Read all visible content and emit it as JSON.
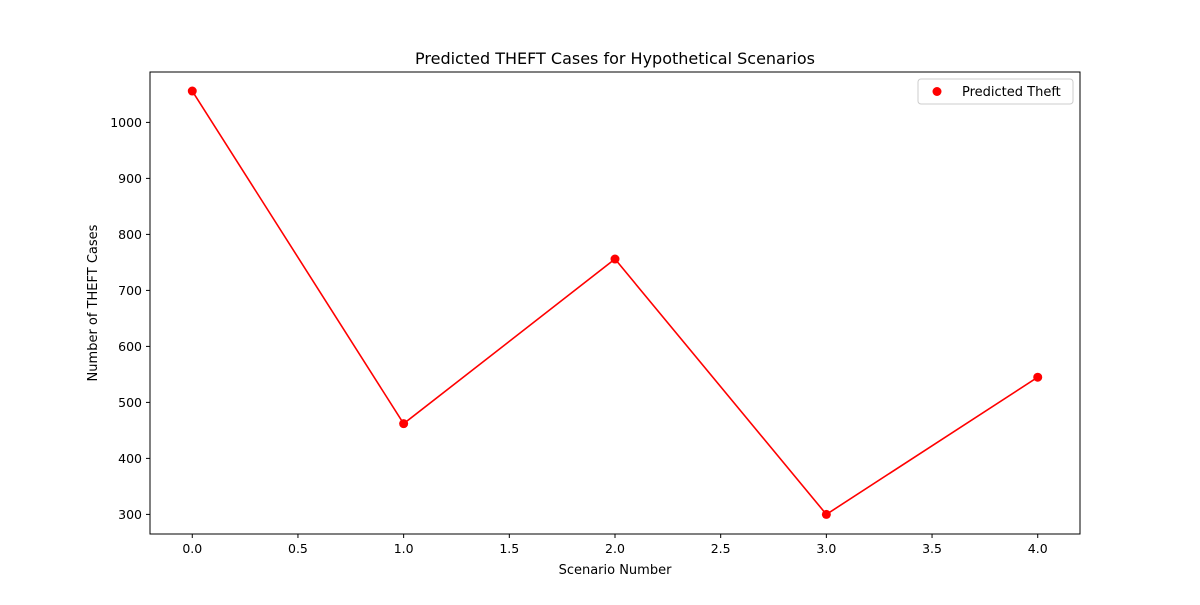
{
  "chart_data": {
    "type": "line",
    "title": "Predicted THEFT Cases for Hypothetical Scenarios",
    "xlabel": "Scenario Number",
    "ylabel": "Number of THEFT Cases",
    "xlim": [
      -0.2,
      4.2
    ],
    "ylim": [
      265,
      1090
    ],
    "xticks": [
      0.0,
      0.5,
      1.0,
      1.5,
      2.0,
      2.5,
      3.0,
      3.5,
      4.0
    ],
    "xtick_labels": [
      "0.0",
      "0.5",
      "1.0",
      "1.5",
      "2.0",
      "2.5",
      "3.0",
      "3.5",
      "4.0"
    ],
    "yticks": [
      300,
      400,
      500,
      600,
      700,
      800,
      900,
      1000
    ],
    "ytick_labels": [
      "300",
      "400",
      "500",
      "600",
      "700",
      "800",
      "900",
      "1000"
    ],
    "grid": false,
    "legend_position": "top-right",
    "series": [
      {
        "name": "Predicted Theft",
        "color": "#ff0000",
        "marker": "circle",
        "x": [
          0,
          1,
          2,
          3,
          4
        ],
        "y": [
          1056,
          462,
          756,
          300,
          545
        ]
      }
    ]
  }
}
